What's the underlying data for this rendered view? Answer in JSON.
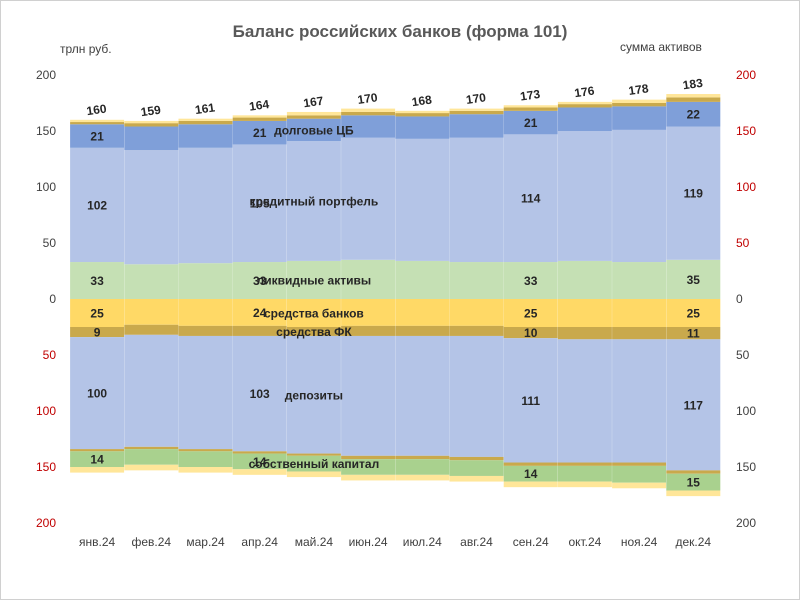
{
  "chart_data": {
    "type": "bar",
    "title": "Баланс российских банков (форма 101)",
    "left_unit": "трлн руб.",
    "right_label": "сумма активов",
    "categories": [
      "янв.24",
      "фев.24",
      "мар.24",
      "апр.24",
      "май.24",
      "июн.24",
      "июл.24",
      "авг.24",
      "сен.24",
      "окт.24",
      "ноя.24",
      "дек.24"
    ],
    "ylim": [
      -200,
      200
    ],
    "left_ticks": [
      "200",
      "150",
      "100",
      "50",
      "0",
      "50",
      "100",
      "150",
      "200"
    ],
    "right_ticks": [
      "200",
      "150",
      "100",
      "50",
      "0",
      "50",
      "100",
      "150",
      "200"
    ],
    "colors": {
      "liquid": "#c5e0b4",
      "credit": "#b4c4e7",
      "bonds": "#7f9fd9",
      "assets_other1": "#c9a94c",
      "assets_other2": "#ffe699",
      "bank_funds": "#ffd966",
      "fk_funds": "#c9a94c",
      "deposits": "#b4c4e7",
      "liab_other": "#c9a94c",
      "equity": "#a9d18e",
      "liab_other2": "#ffe699",
      "red_tick": "#c00000"
    },
    "assets_series": [
      {
        "name": "ликвидные активы",
        "values": [
          33,
          31,
          32,
          33,
          34,
          35,
          34,
          33,
          33,
          34,
          33,
          35
        ]
      },
      {
        "name": "кредитный портфель",
        "values": [
          102,
          102,
          103,
          105,
          107,
          109,
          109,
          111,
          114,
          116,
          118,
          119
        ]
      },
      {
        "name": "долговые ЦБ",
        "values": [
          21,
          21,
          21,
          21,
          20,
          20,
          20,
          21,
          21,
          21,
          21,
          22
        ]
      },
      {
        "name": "",
        "values": [
          2,
          3,
          3,
          3,
          3,
          3,
          3,
          3,
          3,
          3,
          3,
          4
        ]
      },
      {
        "name": "",
        "values": [
          2,
          2,
          2,
          2,
          3,
          3,
          2,
          2,
          2,
          2,
          3,
          3
        ]
      }
    ],
    "liabilities_series": [
      {
        "name": "средства банков",
        "values": [
          25,
          23,
          24,
          24,
          25,
          24,
          24,
          24,
          25,
          25,
          25,
          25
        ]
      },
      {
        "name": "средства ФК",
        "values": [
          9,
          9,
          9,
          9,
          8,
          9,
          9,
          9,
          10,
          11,
          11,
          11
        ]
      },
      {
        "name": "депозиты",
        "values": [
          100,
          100,
          101,
          103,
          105,
          107,
          107,
          108,
          111,
          110,
          110,
          117
        ]
      },
      {
        "name": "",
        "values": [
          2,
          2,
          2,
          2,
          2,
          3,
          3,
          3,
          3,
          3,
          3,
          3
        ]
      },
      {
        "name": "собственный капитал",
        "values": [
          14,
          14,
          14,
          14,
          14,
          14,
          14,
          14,
          14,
          14,
          15,
          15
        ]
      },
      {
        "name": "",
        "values": [
          5,
          5,
          5,
          5,
          5,
          5,
          5,
          5,
          5,
          5,
          5,
          5
        ]
      }
    ],
    "totals": [
      160,
      159,
      161,
      164,
      167,
      170,
      168,
      170,
      173,
      176,
      178,
      183
    ],
    "value_labels": {
      "liquid": [
        "33",
        "",
        "",
        "33",
        "",
        "",
        "",
        "",
        "33",
        "",
        "",
        "35"
      ],
      "credit": [
        "102",
        "",
        "",
        "105",
        "",
        "",
        "",
        "",
        "114",
        "",
        "",
        "119"
      ],
      "bonds": [
        "21",
        "",
        "",
        "21",
        "",
        "",
        "",
        "",
        "21",
        "",
        "",
        "22"
      ],
      "bank_funds": [
        "25",
        "",
        "",
        "24",
        "",
        "",
        "",
        "",
        "25",
        "",
        "",
        "25"
      ],
      "fk_funds": [
        "9",
        "",
        "",
        "",
        "",
        "",
        "",
        "",
        "10",
        "",
        "",
        "11"
      ],
      "deposits": [
        "100",
        "",
        "",
        "103",
        "",
        "",
        "",
        "",
        "111",
        "",
        "",
        "117"
      ],
      "equity": [
        "14",
        "",
        "",
        "14",
        "",
        "",
        "",
        "",
        "14",
        "",
        "",
        "15"
      ]
    },
    "annotations": [
      {
        "text": "долговые ЦБ",
        "col": 4,
        "series": "bonds"
      },
      {
        "text": "кредитный портфель",
        "col": 4,
        "series": "credit"
      },
      {
        "text": "ликвидные активы",
        "col": 4,
        "series": "liquid"
      },
      {
        "text": "средства банков",
        "col": 4,
        "series": "bank_funds"
      },
      {
        "text": "средства ФК",
        "col": 4,
        "series": "fk_funds"
      },
      {
        "text": "депозиты",
        "col": 4,
        "series": "deposits"
      },
      {
        "text": "собственный капитал",
        "col": 4,
        "series": "equity"
      }
    ]
  }
}
